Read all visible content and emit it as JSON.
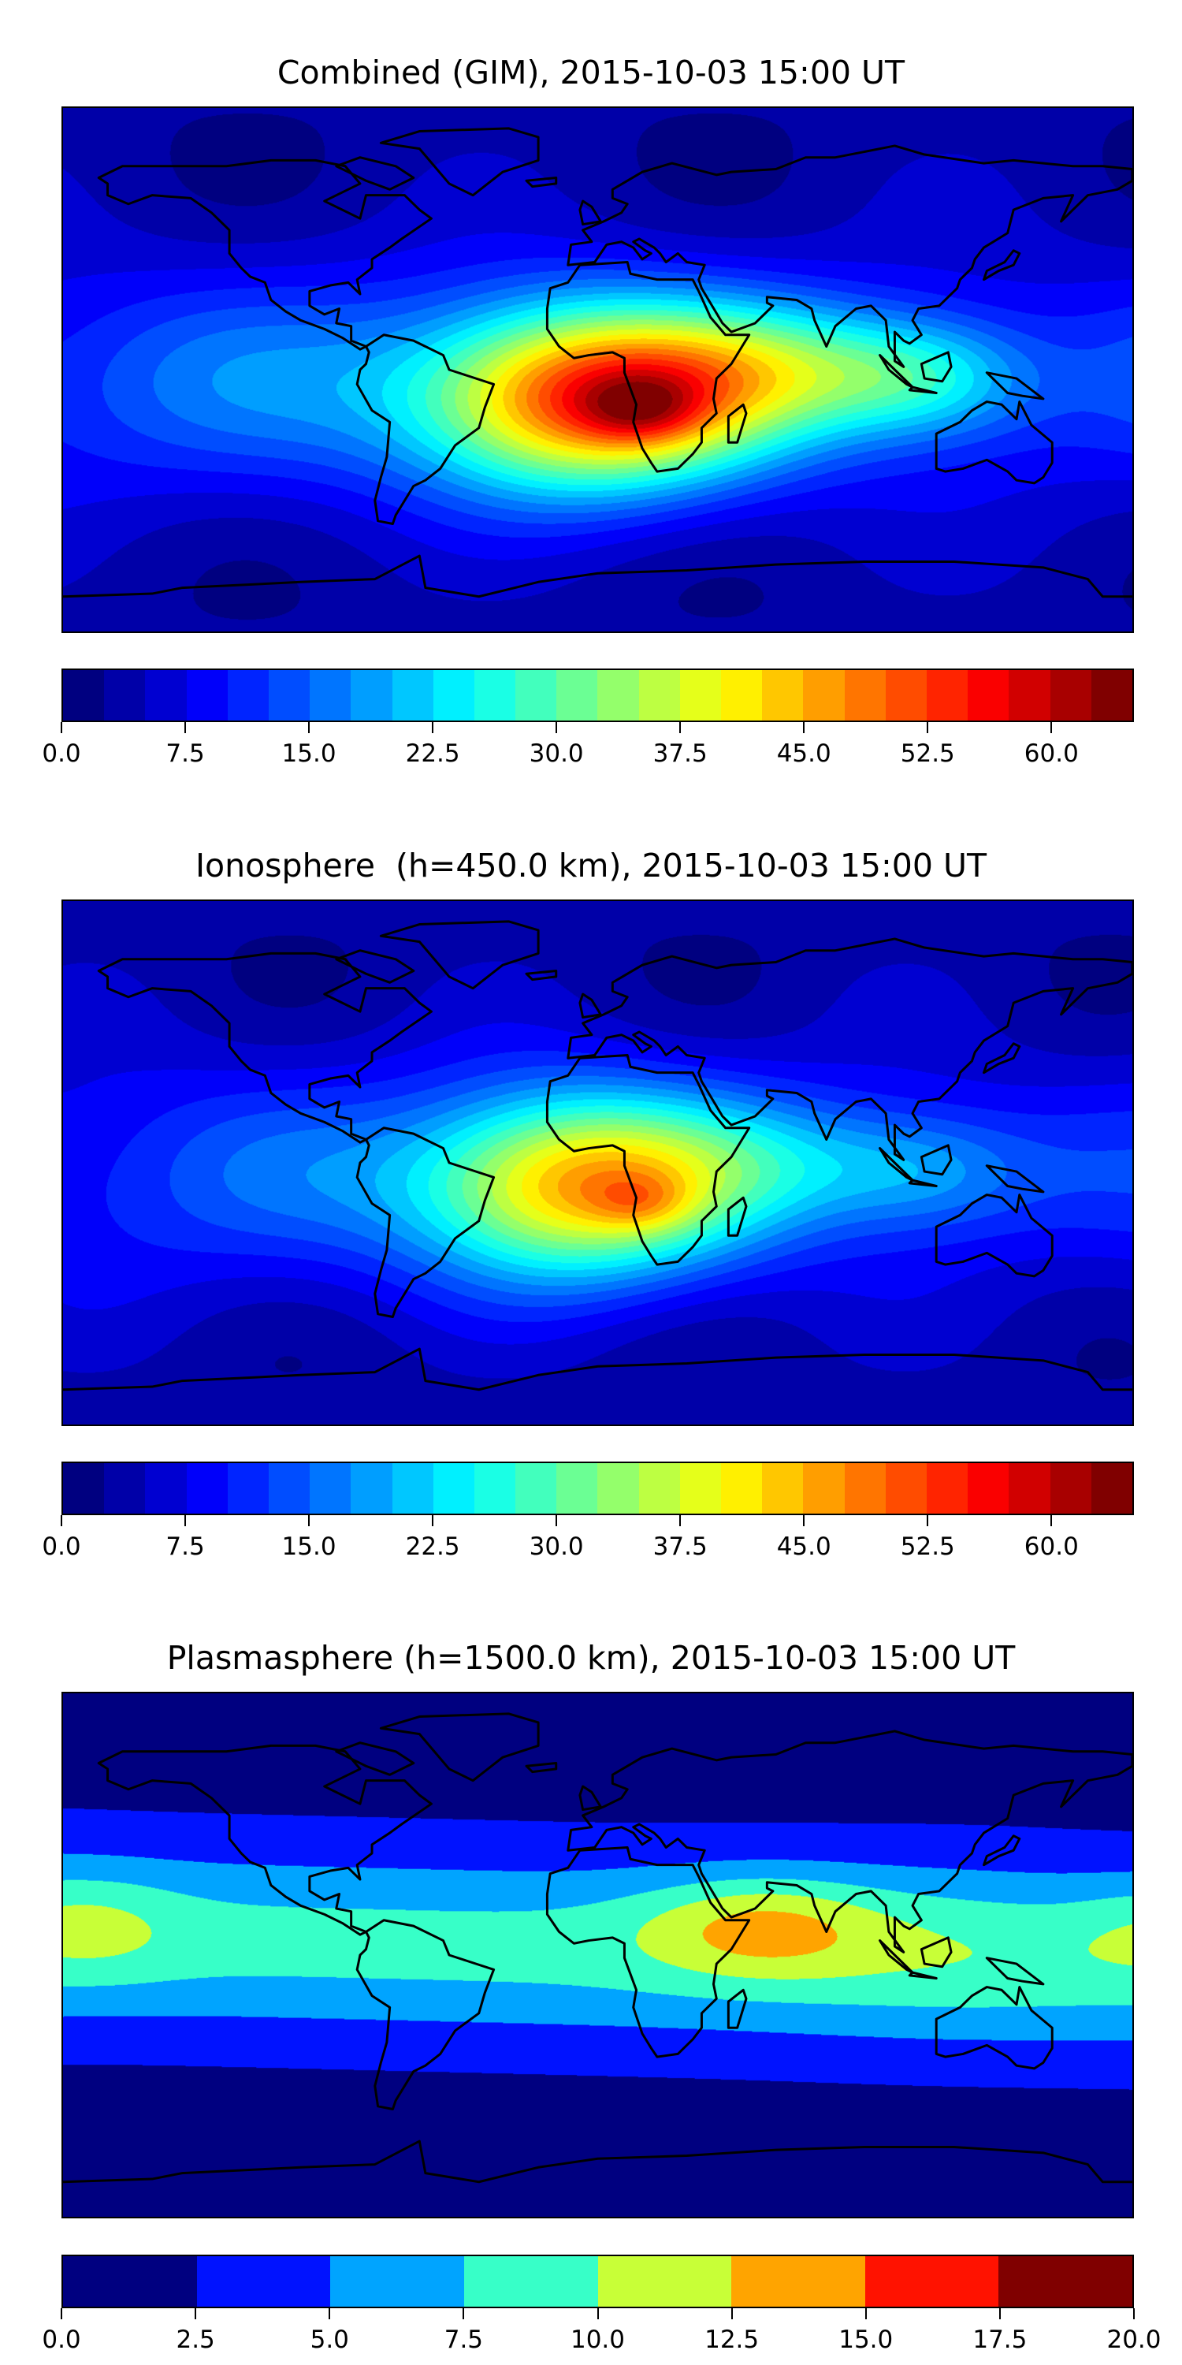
{
  "chart_data": [
    {
      "type": "heatmap",
      "title": "Combined (GIM), 2015-10-03 15:00 UT",
      "projection": "equirectangular world map",
      "colormap": "jet",
      "vmin": 0,
      "vmax": 65,
      "level_step": 2.5,
      "colorbar_ticks": [
        "0.0",
        "7.5",
        "15.0",
        "22.5",
        "30.0",
        "37.5",
        "45.0",
        "52.5",
        "60.0"
      ],
      "features": [
        {
          "name": "main peak",
          "lon": 5,
          "lat": -12,
          "value": 61
        },
        {
          "name": "equatorial band east",
          "lon": 110,
          "lat": -2,
          "value": 25
        },
        {
          "name": "polar background",
          "value": 3
        }
      ]
    },
    {
      "type": "heatmap",
      "title": "Ionosphere  (h=450.0 km), 2015-10-03 15:00 UT",
      "projection": "equirectangular world map",
      "colormap": "jet",
      "vmin": 0,
      "vmax": 65,
      "level_step": 2.5,
      "colorbar_ticks": [
        "0.0",
        "7.5",
        "15.0",
        "22.5",
        "30.0",
        "37.5",
        "45.0",
        "52.5",
        "60.0"
      ],
      "features": [
        {
          "name": "main peak",
          "lon": 0,
          "lat": -10,
          "value": 48
        },
        {
          "name": "equatorial band east",
          "lon": 110,
          "lat": -2,
          "value": 18
        },
        {
          "name": "polar background",
          "value": 3
        }
      ]
    },
    {
      "type": "heatmap",
      "title": "Plasmasphere (h=1500.0 km), 2015-10-03 15:00 UT",
      "projection": "equirectangular world map",
      "colormap": "jet",
      "vmin": 0,
      "vmax": 20,
      "level_step": 2.5,
      "colorbar_ticks": [
        "0.0",
        "2.5",
        "5.0",
        "7.5",
        "10.0",
        "12.5",
        "15.0",
        "17.5",
        "20.0"
      ],
      "features": [
        {
          "name": "main peak",
          "lon": 55,
          "lat": 12,
          "value": 13.5
        },
        {
          "name": "central pacific bump",
          "lon": -170,
          "lat": 10,
          "value": 10
        },
        {
          "name": "polar background",
          "value": 1.5
        }
      ]
    }
  ]
}
